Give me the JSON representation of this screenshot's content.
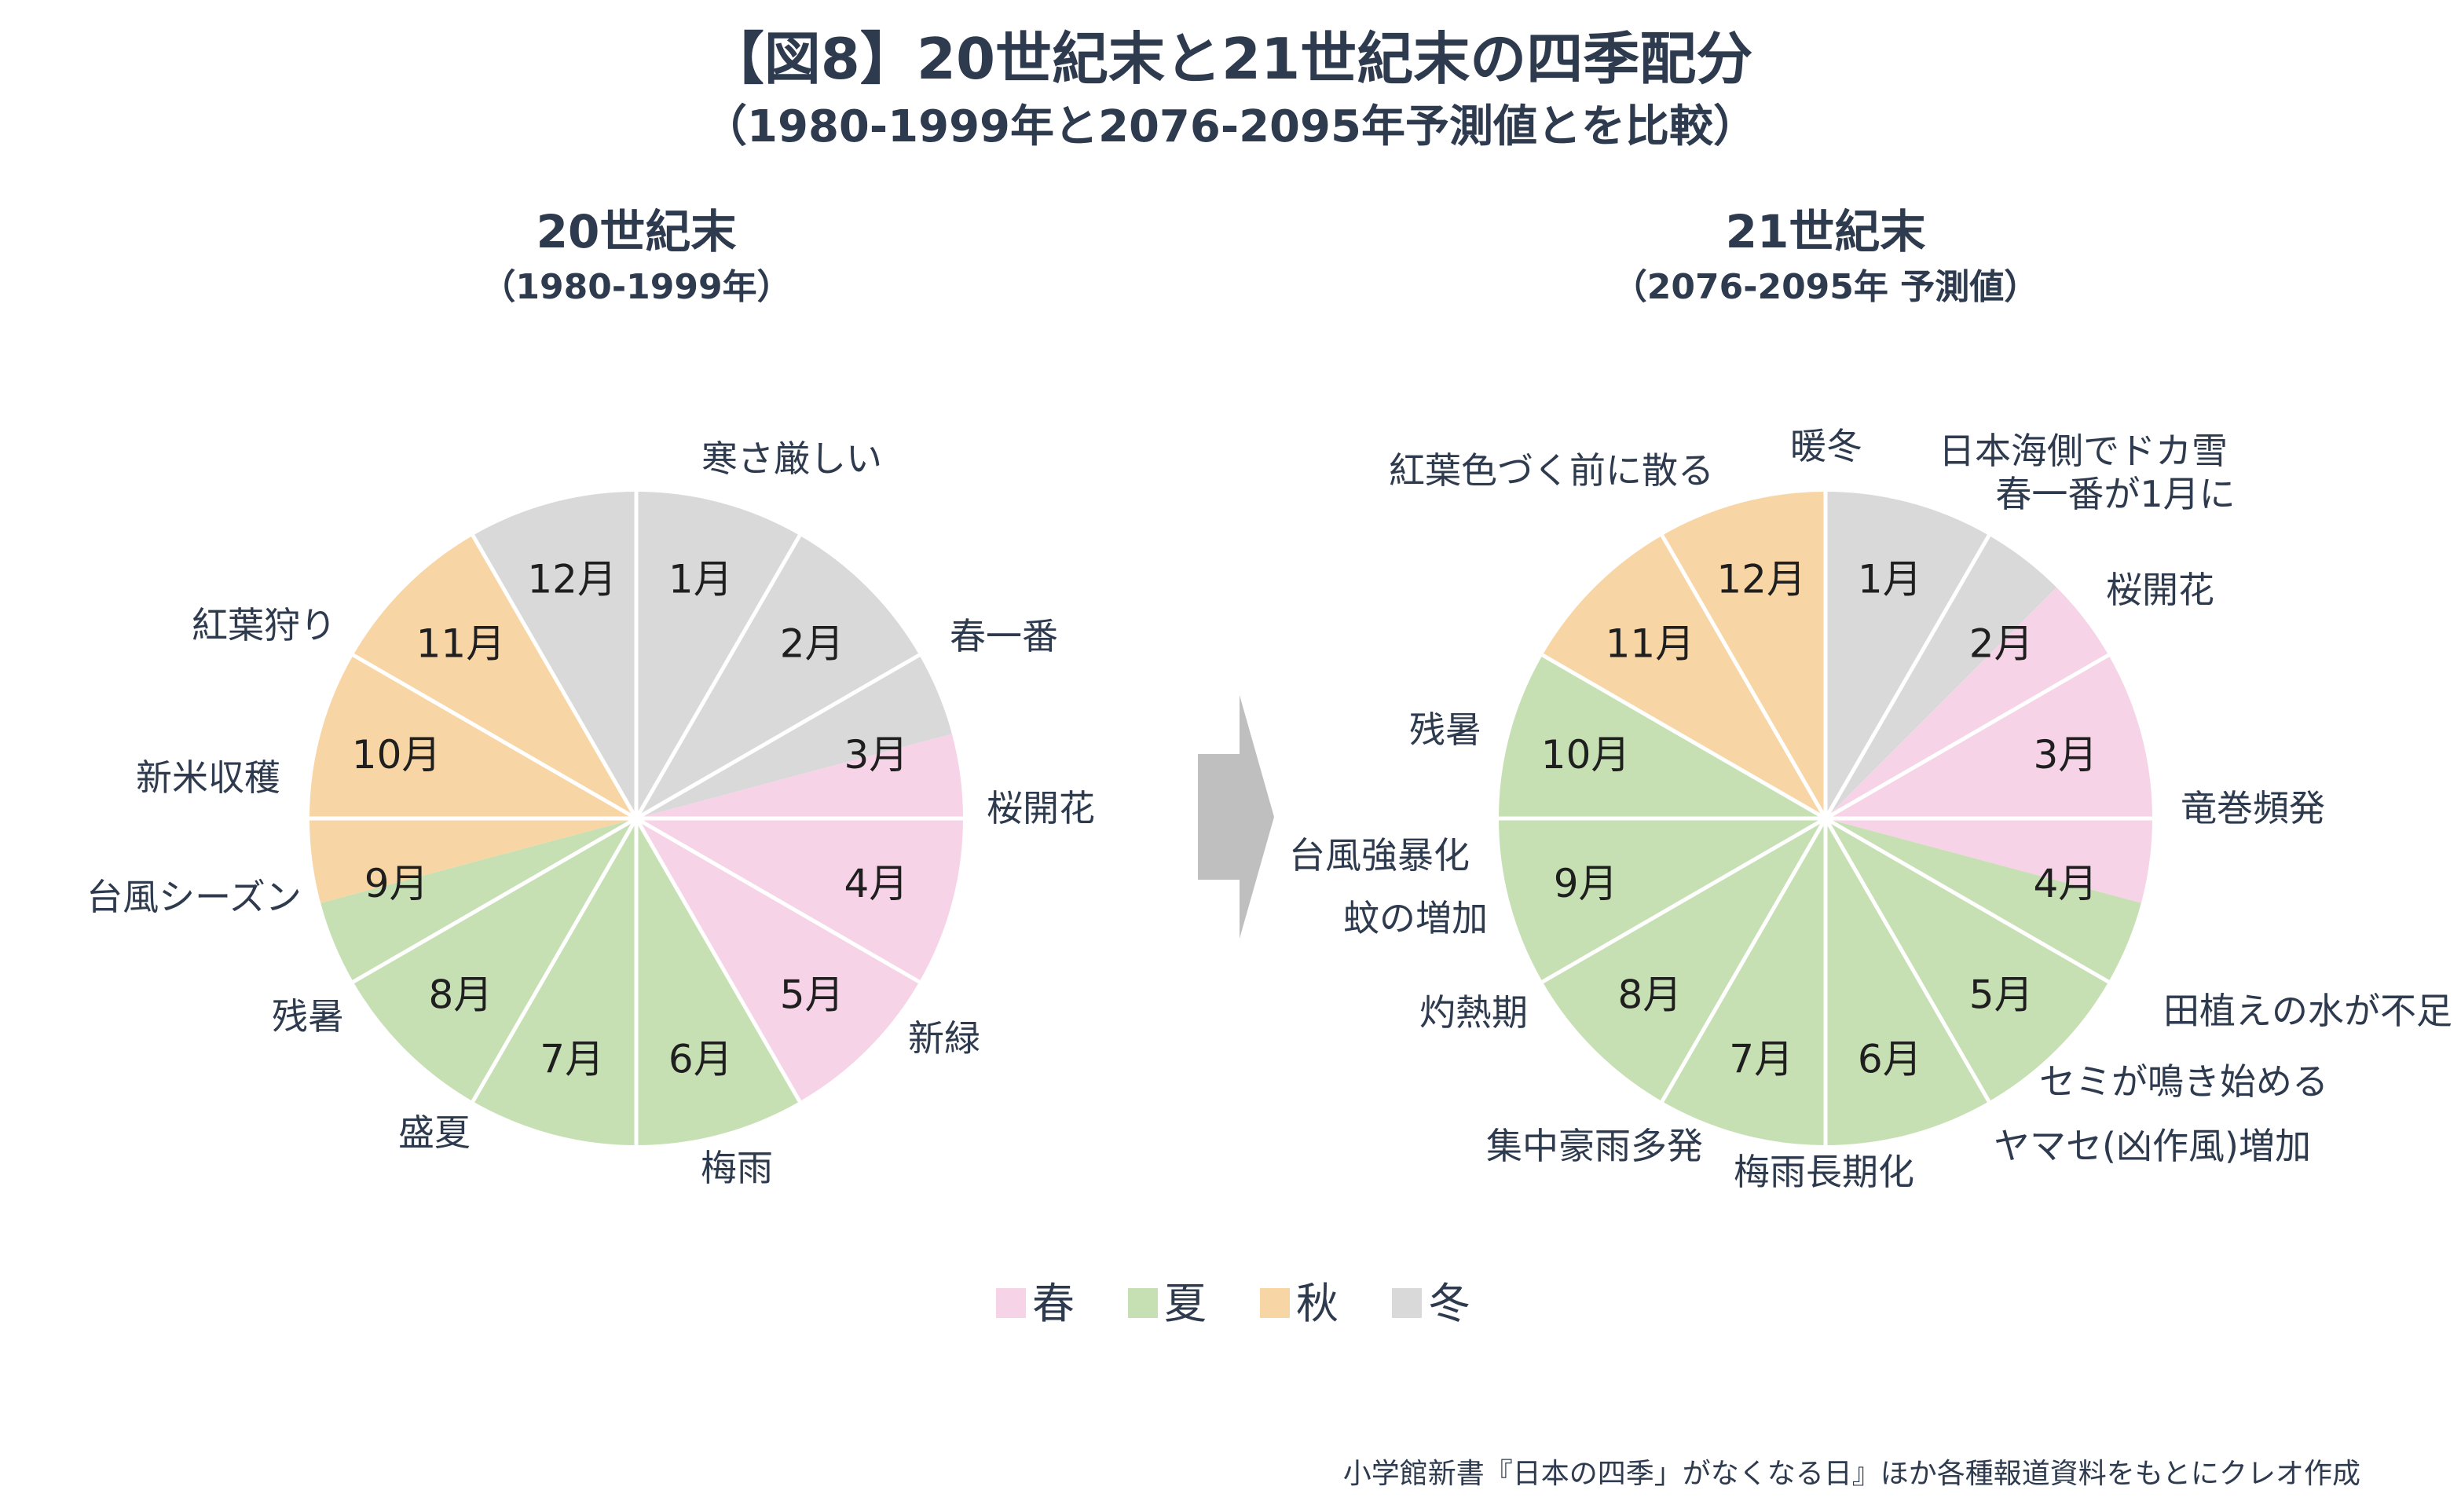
{
  "title": "【図8】20世紀末と21世紀末の四季配分",
  "subtitle": "（1980-1999年と2076-2095年予測値とを比較）",
  "source": "小学館新書『日本の四季」がなくなる日』ほか各種報道資料をもとにクレオ作成",
  "colors": {
    "spring": "#f6d3e6",
    "summer": "#c6e0b4",
    "autumn": "#f8d5a4",
    "winter": "#d9d9d9",
    "text": "#2e3a4e",
    "arrow": "#bfbfbf"
  },
  "legend": [
    {
      "key": "spring",
      "label": "春"
    },
    {
      "key": "summer",
      "label": "夏"
    },
    {
      "key": "autumn",
      "label": "秋"
    },
    {
      "key": "winter",
      "label": "冬"
    }
  ],
  "chart_data": [
    {
      "type": "pie",
      "title": "20世紀末",
      "subtitle": "（1980-1999年）",
      "slices": [
        {
          "label": "1月",
          "value": 1,
          "season": "winter"
        },
        {
          "label": "2月",
          "value": 1,
          "season": "winter"
        },
        {
          "label": "3月",
          "value": 0.5,
          "season": "winter"
        },
        {
          "label": "3月",
          "value": 0.5,
          "season": "spring"
        },
        {
          "label": "4月",
          "value": 1,
          "season": "spring"
        },
        {
          "label": "5月",
          "value": 1,
          "season": "spring"
        },
        {
          "label": "6月",
          "value": 1,
          "season": "summer"
        },
        {
          "label": "7月",
          "value": 1,
          "season": "summer"
        },
        {
          "label": "8月",
          "value": 1,
          "season": "summer"
        },
        {
          "label": "9月",
          "value": 0.5,
          "season": "summer"
        },
        {
          "label": "9月",
          "value": 0.5,
          "season": "autumn"
        },
        {
          "label": "10月",
          "value": 1,
          "season": "autumn"
        },
        {
          "label": "11月",
          "value": 1,
          "season": "autumn"
        },
        {
          "label": "12月",
          "value": 1,
          "season": "winter"
        }
      ],
      "month_labels": [
        "1月",
        "2月",
        "3月",
        "4月",
        "5月",
        "6月",
        "7月",
        "8月",
        "9月",
        "10月",
        "11月",
        "12月"
      ],
      "events": [
        "寒さ厳しい",
        "春一番",
        "桜開花",
        "新緑",
        "梅雨",
        "盛夏",
        "残暑",
        "台風シーズン",
        "新米収穫",
        "紅葉狩り"
      ]
    },
    {
      "type": "pie",
      "title": "21世紀末",
      "subtitle": "（2076-2095年 予測値）",
      "slices": [
        {
          "label": "1月",
          "value": 1,
          "season": "winter"
        },
        {
          "label": "2月",
          "value": 0.5,
          "season": "winter"
        },
        {
          "label": "2月",
          "value": 0.5,
          "season": "spring"
        },
        {
          "label": "3月",
          "value": 1,
          "season": "spring"
        },
        {
          "label": "4月",
          "value": 0.5,
          "season": "spring"
        },
        {
          "label": "4月",
          "value": 0.5,
          "season": "summer"
        },
        {
          "label": "5月",
          "value": 1,
          "season": "summer"
        },
        {
          "label": "6月",
          "value": 1,
          "season": "summer"
        },
        {
          "label": "7月",
          "value": 1,
          "season": "summer"
        },
        {
          "label": "8月",
          "value": 1,
          "season": "summer"
        },
        {
          "label": "9月",
          "value": 1,
          "season": "summer"
        },
        {
          "label": "10月",
          "value": 1,
          "season": "summer"
        },
        {
          "label": "11月",
          "value": 1,
          "season": "autumn"
        },
        {
          "label": "12月",
          "value": 1,
          "season": "autumn"
        }
      ],
      "month_labels": [
        "1月",
        "2月",
        "3月",
        "4月",
        "5月",
        "6月",
        "7月",
        "8月",
        "9月",
        "10月",
        "11月",
        "12月"
      ],
      "events": [
        "暖冬",
        "日本海側でドカ雪",
        "春一番が1月に",
        "桜開花",
        "竜巻頻発",
        "田植えの水が不足",
        "セミが鳴き始める",
        "ヤマセ(凶作風)増加",
        "梅雨長期化",
        "集中豪雨多発",
        "灼熱期",
        "蚊の増加",
        "台風強暴化",
        "残暑",
        "紅葉色づく前に散る"
      ]
    }
  ]
}
